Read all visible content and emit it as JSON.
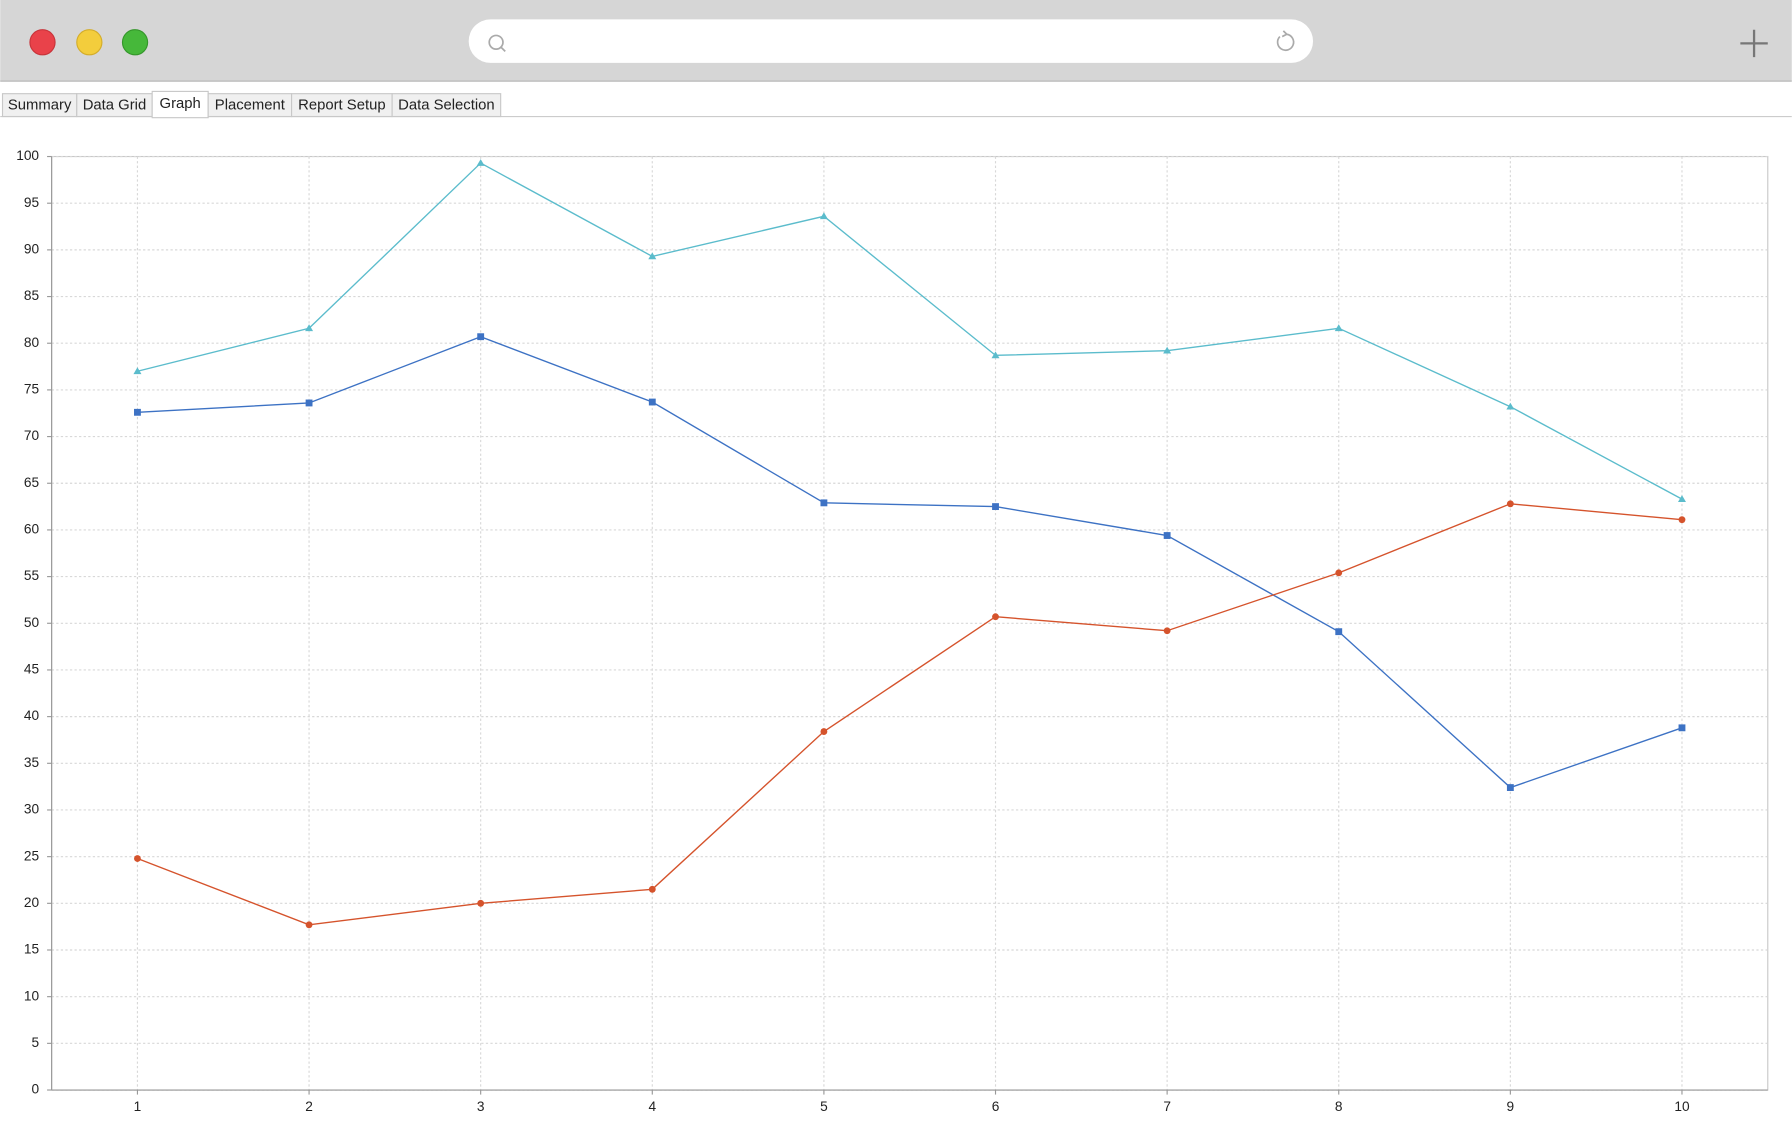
{
  "tabs": [
    "Summary",
    "Data Grid",
    "Graph",
    "Placement",
    "Report Setup",
    "Data Selection"
  ],
  "active_tab": 2,
  "chart_data": {
    "type": "line",
    "x": [
      1,
      2,
      3,
      4,
      5,
      6,
      7,
      8,
      9,
      10
    ],
    "series": [
      {
        "color": "#5bbccc",
        "marker": "triangle",
        "values": [
          77.0,
          81.6,
          99.3,
          89.3,
          93.6,
          78.7,
          79.2,
          81.6,
          73.2,
          63.3
        ]
      },
      {
        "color": "#3d72c4",
        "marker": "square",
        "values": [
          72.6,
          73.6,
          80.7,
          73.7,
          62.9,
          62.5,
          59.4,
          49.1,
          32.4,
          38.8
        ]
      },
      {
        "color": "#d5532c",
        "marker": "circle",
        "values": [
          24.8,
          17.7,
          20.0,
          21.5,
          38.4,
          50.7,
          49.2,
          55.4,
          62.8,
          61.1
        ]
      }
    ],
    "xlim": [
      0.5,
      10.5
    ],
    "xticks": [
      1,
      2,
      3,
      4,
      5,
      6,
      7,
      8,
      9,
      10
    ],
    "ylim": [
      0,
      100
    ],
    "yticks": [
      0,
      5,
      10,
      15,
      20,
      25,
      30,
      35,
      40,
      45,
      50,
      55,
      60,
      65,
      70,
      75,
      80,
      85,
      90,
      95,
      100
    ],
    "grid": true
  }
}
